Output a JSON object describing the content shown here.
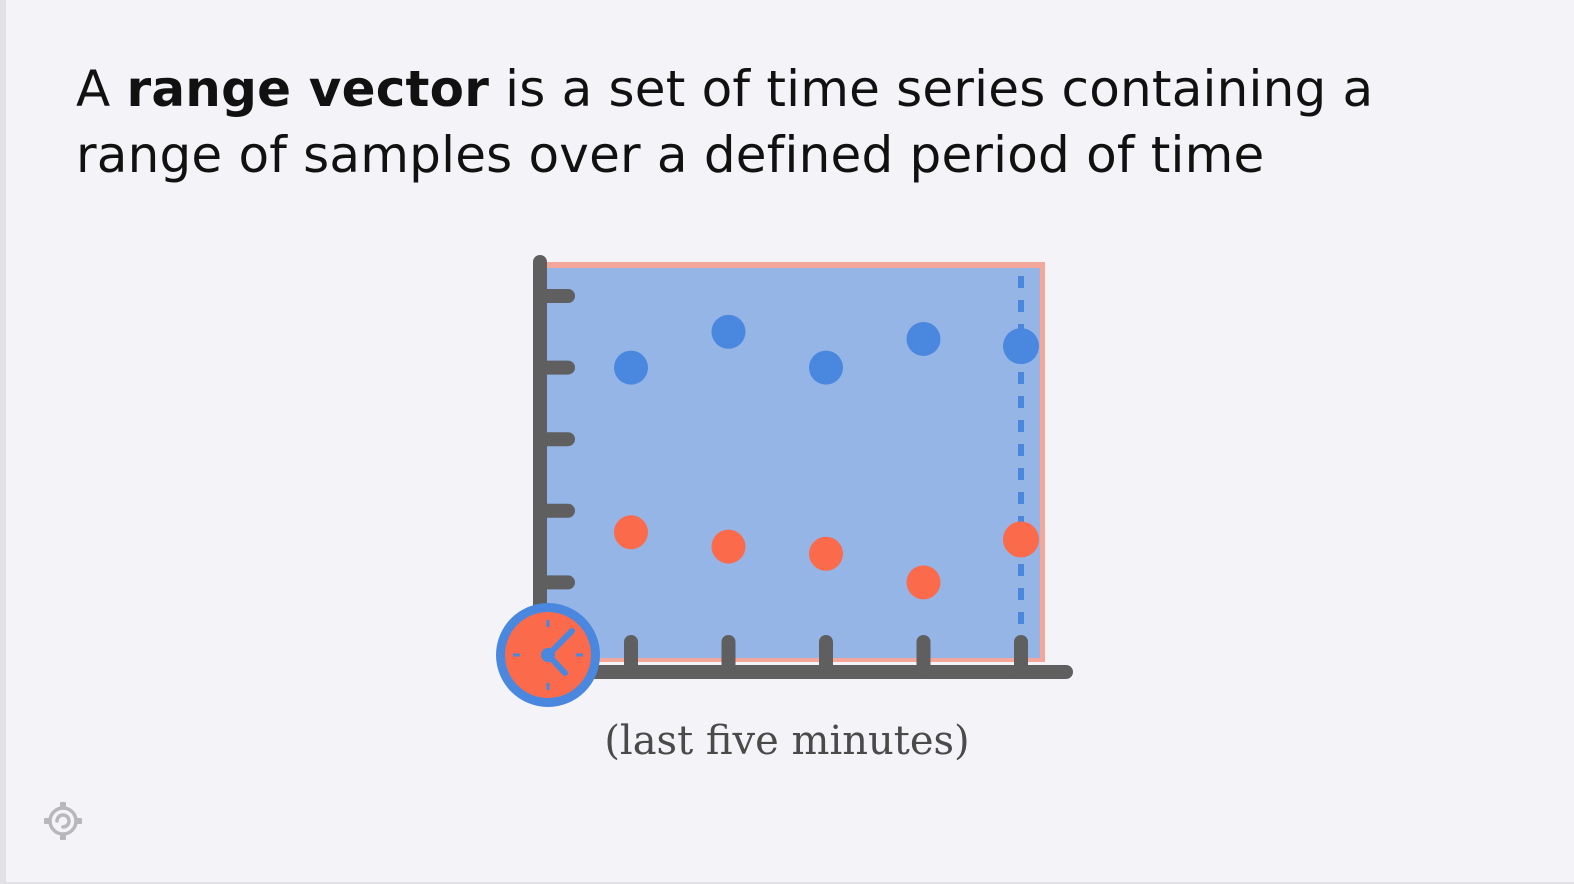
{
  "headline": {
    "prefix": "A ",
    "term": "range vector",
    "rest_line1": " is a set of time series containing a",
    "line2": "range of samples over a defined period of time"
  },
  "caption": "(last five minutes)",
  "colors": {
    "background": "#f4f4f8",
    "range_fill": "#94b5e6",
    "range_border": "#f3a79a",
    "axis": "#5f5f5f",
    "series_blue": "#4a87de",
    "series_orange": "#fb6b4b",
    "clock_ring": "#4a87de",
    "clock_face": "#fb6b4b"
  },
  "icons": {
    "clock": "clock-icon",
    "logo": "gear-swirl-logo-icon"
  },
  "chart_data": {
    "type": "scatter",
    "x": [
      1,
      2,
      3,
      4,
      5
    ],
    "ylim": [
      0,
      6
    ],
    "series": [
      {
        "values": [
          4.0,
          4.5,
          4.0,
          4.4,
          4.3
        ]
      },
      {
        "values": [
          1.7,
          1.5,
          1.4,
          1.0,
          1.6
        ]
      }
    ],
    "highlight_x": 5
  }
}
